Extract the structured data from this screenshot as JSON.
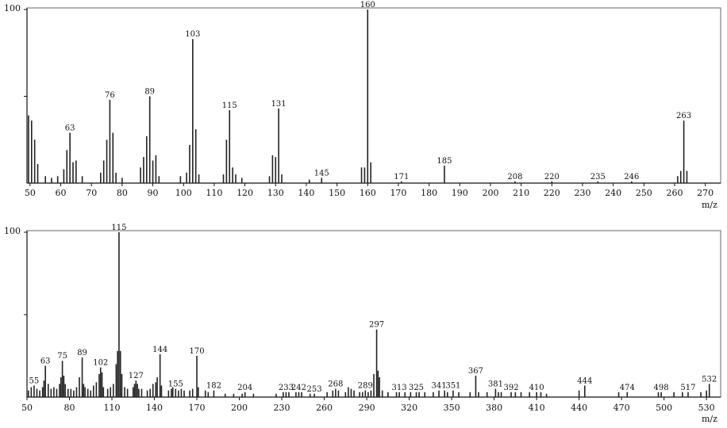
{
  "chart_data": [
    {
      "type": "bar",
      "xlabel": "m/z",
      "y_top_label": "100",
      "xlim": [
        49,
        275
      ],
      "ylim": [
        0,
        100
      ],
      "x_ticks": [
        50,
        60,
        70,
        80,
        90,
        100,
        110,
        120,
        130,
        140,
        150,
        160,
        170,
        180,
        190,
        200,
        210,
        220,
        230,
        240,
        250,
        260,
        270
      ],
      "peaks": [
        {
          "x": 49.5,
          "y": 39
        },
        {
          "x": 50.5,
          "y": 36
        },
        {
          "x": 51.5,
          "y": 25
        },
        {
          "x": 52.5,
          "y": 11
        },
        {
          "x": 55,
          "y": 4
        },
        {
          "x": 57,
          "y": 3
        },
        {
          "x": 59,
          "y": 4
        },
        {
          "x": 61,
          "y": 8
        },
        {
          "x": 62,
          "y": 19
        },
        {
          "x": 63,
          "y": 29,
          "label": "63"
        },
        {
          "x": 64,
          "y": 12
        },
        {
          "x": 65,
          "y": 13
        },
        {
          "x": 67,
          "y": 4
        },
        {
          "x": 73,
          "y": 6
        },
        {
          "x": 74,
          "y": 13
        },
        {
          "x": 75,
          "y": 25
        },
        {
          "x": 76,
          "y": 48,
          "label": "76"
        },
        {
          "x": 77,
          "y": 29
        },
        {
          "x": 78,
          "y": 6
        },
        {
          "x": 80,
          "y": 3
        },
        {
          "x": 86,
          "y": 9
        },
        {
          "x": 87,
          "y": 15
        },
        {
          "x": 88,
          "y": 27
        },
        {
          "x": 89,
          "y": 50,
          "label": "89"
        },
        {
          "x": 90,
          "y": 13
        },
        {
          "x": 91,
          "y": 16
        },
        {
          "x": 92,
          "y": 4
        },
        {
          "x": 99,
          "y": 4
        },
        {
          "x": 101,
          "y": 6
        },
        {
          "x": 102,
          "y": 22
        },
        {
          "x": 103,
          "y": 83,
          "label": "103"
        },
        {
          "x": 104,
          "y": 31
        },
        {
          "x": 105,
          "y": 5
        },
        {
          "x": 113,
          "y": 5
        },
        {
          "x": 114,
          "y": 25
        },
        {
          "x": 115,
          "y": 42,
          "label": "115"
        },
        {
          "x": 116,
          "y": 9
        },
        {
          "x": 117,
          "y": 5
        },
        {
          "x": 119,
          "y": 3
        },
        {
          "x": 128,
          "y": 4
        },
        {
          "x": 129,
          "y": 16
        },
        {
          "x": 130,
          "y": 15
        },
        {
          "x": 131,
          "y": 43,
          "label": "131"
        },
        {
          "x": 132,
          "y": 5
        },
        {
          "x": 141,
          "y": 2
        },
        {
          "x": 145,
          "y": 3,
          "label": "145"
        },
        {
          "x": 158,
          "y": 9
        },
        {
          "x": 159,
          "y": 9
        },
        {
          "x": 160,
          "y": 100,
          "label": "160"
        },
        {
          "x": 161,
          "y": 12
        },
        {
          "x": 171,
          "y": 1,
          "label": "171"
        },
        {
          "x": 185,
          "y": 10,
          "label": "185"
        },
        {
          "x": 208,
          "y": 1,
          "label": "208"
        },
        {
          "x": 220,
          "y": 1,
          "label": "220"
        },
        {
          "x": 235,
          "y": 1,
          "label": "235"
        },
        {
          "x": 246,
          "y": 1,
          "label": "246"
        },
        {
          "x": 261,
          "y": 4
        },
        {
          "x": 262,
          "y": 7
        },
        {
          "x": 263,
          "y": 36,
          "label": "263"
        },
        {
          "x": 264,
          "y": 7
        }
      ]
    },
    {
      "type": "bar",
      "xlabel": "m/z",
      "y_top_label": "100",
      "xlim": [
        50,
        540
      ],
      "ylim": [
        0,
        100
      ],
      "x_ticks": [
        50,
        80,
        110,
        140,
        170,
        200,
        230,
        260,
        290,
        320,
        350,
        380,
        410,
        440,
        470,
        500,
        530
      ],
      "peaks": [
        {
          "x": 51,
          "y": 4
        },
        {
          "x": 53,
          "y": 6
        },
        {
          "x": 55,
          "y": 7,
          "label": "55"
        },
        {
          "x": 57,
          "y": 5
        },
        {
          "x": 59,
          "y": 4
        },
        {
          "x": 61,
          "y": 6
        },
        {
          "x": 62,
          "y": 10
        },
        {
          "x": 63,
          "y": 19,
          "label": "63"
        },
        {
          "x": 65,
          "y": 8
        },
        {
          "x": 67,
          "y": 5
        },
        {
          "x": 69,
          "y": 6
        },
        {
          "x": 71,
          "y": 5
        },
        {
          "x": 73,
          "y": 8
        },
        {
          "x": 74,
          "y": 12
        },
        {
          "x": 75,
          "y": 22,
          "label": "75"
        },
        {
          "x": 76,
          "y": 13
        },
        {
          "x": 77,
          "y": 8
        },
        {
          "x": 79,
          "y": 5
        },
        {
          "x": 81,
          "y": 5
        },
        {
          "x": 83,
          "y": 4
        },
        {
          "x": 85,
          "y": 6
        },
        {
          "x": 87,
          "y": 12
        },
        {
          "x": 89,
          "y": 24,
          "label": "89"
        },
        {
          "x": 90,
          "y": 8
        },
        {
          "x": 91,
          "y": 6
        },
        {
          "x": 93,
          "y": 5
        },
        {
          "x": 95,
          "y": 4
        },
        {
          "x": 97,
          "y": 7
        },
        {
          "x": 99,
          "y": 9
        },
        {
          "x": 101,
          "y": 14
        },
        {
          "x": 102,
          "y": 18,
          "label": "102"
        },
        {
          "x": 103,
          "y": 15
        },
        {
          "x": 104,
          "y": 6
        },
        {
          "x": 107,
          "y": 5
        },
        {
          "x": 109,
          "y": 6
        },
        {
          "x": 111,
          "y": 8
        },
        {
          "x": 113,
          "y": 20
        },
        {
          "x": 114,
          "y": 28
        },
        {
          "x": 115,
          "y": 100,
          "label": "115"
        },
        {
          "x": 116,
          "y": 28
        },
        {
          "x": 117,
          "y": 14
        },
        {
          "x": 119,
          "y": 6
        },
        {
          "x": 121,
          "y": 5
        },
        {
          "x": 125,
          "y": 6
        },
        {
          "x": 126,
          "y": 8
        },
        {
          "x": 127,
          "y": 10,
          "label": "127"
        },
        {
          "x": 128,
          "y": 8
        },
        {
          "x": 129,
          "y": 5
        },
        {
          "x": 131,
          "y": 5
        },
        {
          "x": 135,
          "y": 4
        },
        {
          "x": 137,
          "y": 5
        },
        {
          "x": 139,
          "y": 8
        },
        {
          "x": 141,
          "y": 9
        },
        {
          "x": 142,
          "y": 12
        },
        {
          "x": 144,
          "y": 26,
          "label": "144"
        },
        {
          "x": 145,
          "y": 7
        },
        {
          "x": 150,
          "y": 4
        },
        {
          "x": 152,
          "y": 5
        },
        {
          "x": 153,
          "y": 6
        },
        {
          "x": 155,
          "y": 5,
          "label": "155"
        },
        {
          "x": 157,
          "y": 4
        },
        {
          "x": 159,
          "y": 5
        },
        {
          "x": 161,
          "y": 4
        },
        {
          "x": 165,
          "y": 4
        },
        {
          "x": 167,
          "y": 5
        },
        {
          "x": 170,
          "y": 25,
          "label": "170"
        },
        {
          "x": 171,
          "y": 6
        },
        {
          "x": 176,
          "y": 4
        },
        {
          "x": 178,
          "y": 3
        },
        {
          "x": 182,
          "y": 4,
          "label": "182"
        },
        {
          "x": 190,
          "y": 2
        },
        {
          "x": 196,
          "y": 2
        },
        {
          "x": 202,
          "y": 2
        },
        {
          "x": 204,
          "y": 3,
          "label": "204"
        },
        {
          "x": 210,
          "y": 2
        },
        {
          "x": 226,
          "y": 2
        },
        {
          "x": 231,
          "y": 3
        },
        {
          "x": 233,
          "y": 3,
          "label": "233"
        },
        {
          "x": 235,
          "y": 3
        },
        {
          "x": 240,
          "y": 3
        },
        {
          "x": 242,
          "y": 3,
          "label": "242"
        },
        {
          "x": 244,
          "y": 3
        },
        {
          "x": 250,
          "y": 2
        },
        {
          "x": 253,
          "y": 2,
          "label": "253"
        },
        {
          "x": 262,
          "y": 3
        },
        {
          "x": 266,
          "y": 4
        },
        {
          "x": 268,
          "y": 5,
          "label": "268"
        },
        {
          "x": 270,
          "y": 4
        },
        {
          "x": 275,
          "y": 3
        },
        {
          "x": 277,
          "y": 6
        },
        {
          "x": 279,
          "y": 5
        },
        {
          "x": 281,
          "y": 4
        },
        {
          "x": 285,
          "y": 3
        },
        {
          "x": 287,
          "y": 3
        },
        {
          "x": 289,
          "y": 4,
          "label": "289"
        },
        {
          "x": 291,
          "y": 3
        },
        {
          "x": 293,
          "y": 4
        },
        {
          "x": 295,
          "y": 14
        },
        {
          "x": 297,
          "y": 41,
          "label": "297"
        },
        {
          "x": 298,
          "y": 16
        },
        {
          "x": 299,
          "y": 12
        },
        {
          "x": 301,
          "y": 4
        },
        {
          "x": 305,
          "y": 3
        },
        {
          "x": 311,
          "y": 3
        },
        {
          "x": 313,
          "y": 3,
          "label": "313"
        },
        {
          "x": 317,
          "y": 3
        },
        {
          "x": 321,
          "y": 3
        },
        {
          "x": 325,
          "y": 3,
          "label": "325"
        },
        {
          "x": 327,
          "y": 3
        },
        {
          "x": 331,
          "y": 3
        },
        {
          "x": 337,
          "y": 3
        },
        {
          "x": 341,
          "y": 4,
          "label": "341"
        },
        {
          "x": 345,
          "y": 4
        },
        {
          "x": 347,
          "y": 3
        },
        {
          "x": 351,
          "y": 4,
          "label": "351"
        },
        {
          "x": 355,
          "y": 3
        },
        {
          "x": 363,
          "y": 3
        },
        {
          "x": 367,
          "y": 13,
          "label": "367"
        },
        {
          "x": 369,
          "y": 3
        },
        {
          "x": 375,
          "y": 3
        },
        {
          "x": 381,
          "y": 5,
          "label": "381"
        },
        {
          "x": 383,
          "y": 3
        },
        {
          "x": 385,
          "y": 3
        },
        {
          "x": 392,
          "y": 3,
          "label": "392"
        },
        {
          "x": 395,
          "y": 3
        },
        {
          "x": 399,
          "y": 3
        },
        {
          "x": 405,
          "y": 3
        },
        {
          "x": 410,
          "y": 3,
          "label": "410"
        },
        {
          "x": 413,
          "y": 3
        },
        {
          "x": 417,
          "y": 2
        },
        {
          "x": 440,
          "y": 4
        },
        {
          "x": 444,
          "y": 7,
          "label": "444"
        },
        {
          "x": 468,
          "y": 3
        },
        {
          "x": 474,
          "y": 3,
          "label": "474"
        },
        {
          "x": 496,
          "y": 3
        },
        {
          "x": 498,
          "y": 3,
          "label": "498"
        },
        {
          "x": 507,
          "y": 3
        },
        {
          "x": 513,
          "y": 3
        },
        {
          "x": 517,
          "y": 3,
          "label": "517"
        },
        {
          "x": 526,
          "y": 3
        },
        {
          "x": 530,
          "y": 4
        },
        {
          "x": 532,
          "y": 8,
          "label": "532"
        }
      ]
    }
  ]
}
